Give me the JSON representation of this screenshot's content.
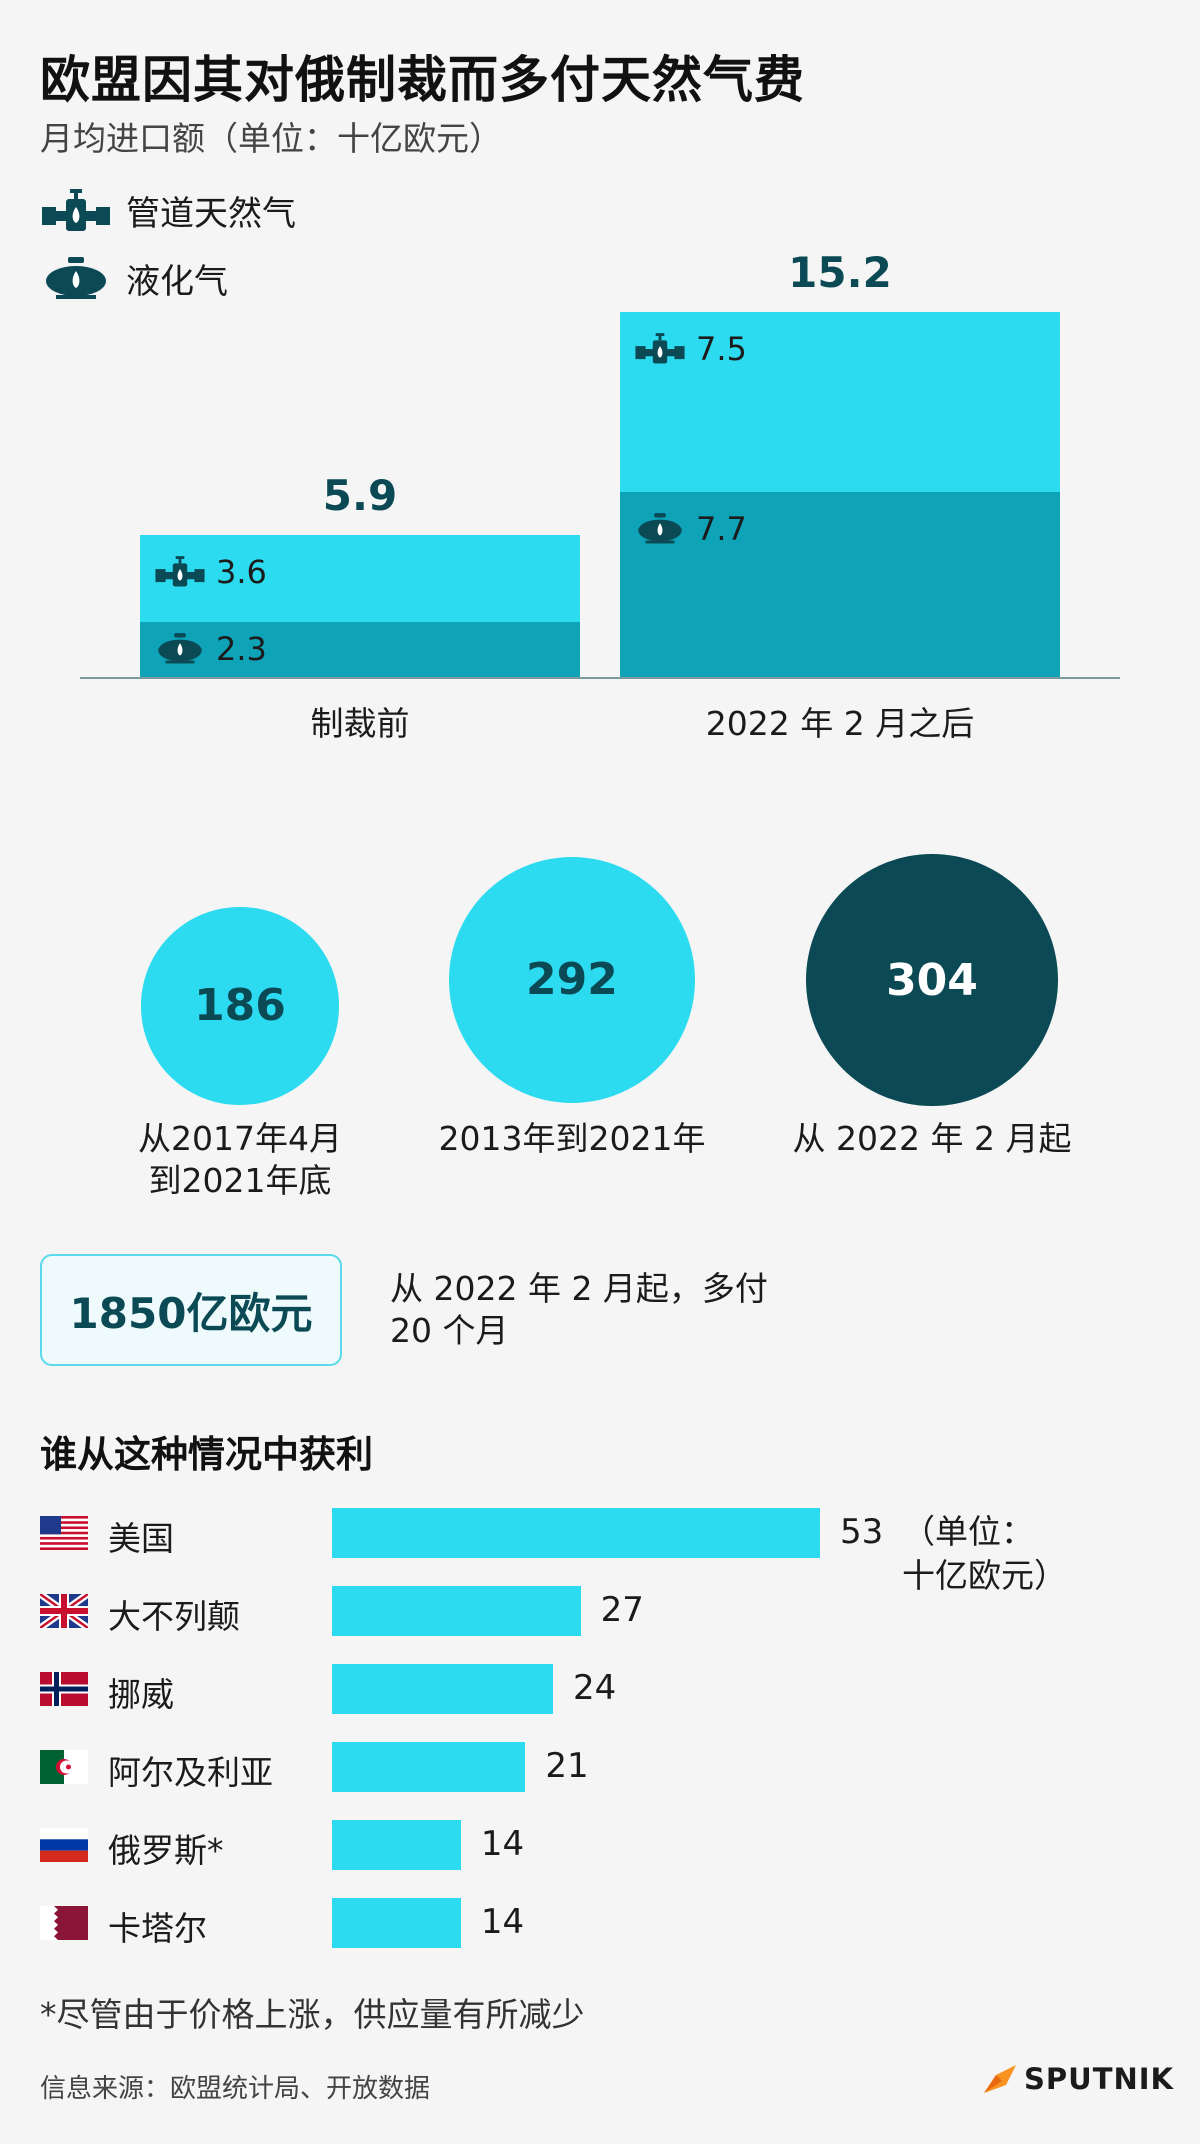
{
  "header": {
    "title": "欧盟因其对俄制裁而多付天然气费",
    "subtitle": "月均进口额（单位：十亿欧元）"
  },
  "legend": {
    "pipeline_label": "管道天然气",
    "lng_label": "液化气",
    "pipeline_icon": "gas-pipeline-icon",
    "lng_icon": "lng-tank-icon"
  },
  "colors": {
    "pipeline": "#2cdbf0",
    "lng": "#0fa3b8",
    "dark": "#0b4a55",
    "accent": "#2cdbf0"
  },
  "chart_data": [
    {
      "type": "bar",
      "stacked": true,
      "categories": [
        "制裁前",
        "2022 年 2 月之后"
      ],
      "series": [
        {
          "name": "液化气",
          "values": [
            2.3,
            7.7
          ]
        },
        {
          "name": "管道天然气",
          "values": [
            3.6,
            7.5
          ]
        }
      ],
      "totals": [
        5.9,
        15.2
      ],
      "total_labels": [
        "5.9",
        "15.2"
      ],
      "segment_labels": {
        "lng": [
          "2.3",
          "7.7"
        ],
        "pipeline": [
          "3.6",
          "7.5"
        ]
      },
      "ylim": [
        0,
        15.2
      ]
    },
    {
      "type": "bubble",
      "items": [
        {
          "label": "186",
          "value": 186,
          "caption_lines": [
            "从2017年4月",
            "到2021年底"
          ],
          "dark": false
        },
        {
          "label": "292",
          "value": 292,
          "caption_lines": [
            "2013年到2021年"
          ],
          "dark": false
        },
        {
          "label": "304",
          "value": 304,
          "caption_lines": [
            "从 2022 年 2 月起"
          ],
          "dark": true
        }
      ]
    },
    {
      "type": "bar",
      "orientation": "horizontal",
      "title": "谁从这种情况中获利",
      "unit_lines": [
        "（单位：",
        "十亿欧元）"
      ],
      "categories": [
        "美国",
        "大不列颠",
        "挪威",
        "阿尔及利亚",
        "俄罗斯*",
        "卡塔尔"
      ],
      "values": [
        53,
        27,
        24,
        21,
        14,
        14
      ],
      "value_labels": [
        "53",
        "27",
        "24",
        "21",
        "14",
        "14"
      ],
      "flags": [
        "us-flag-icon",
        "uk-flag-icon",
        "norway-flag-icon",
        "algeria-flag-icon",
        "russia-flag-icon",
        "qatar-flag-icon"
      ],
      "xlim": [
        0,
        53
      ]
    }
  ],
  "summary": {
    "total": "1850亿欧元",
    "desc_lines": [
      "从 2022 年 2 月起，多付",
      "20 个月"
    ]
  },
  "footer": {
    "footnote": "*尽管由于价格上涨，供应量有所减少",
    "source": "信息来源：欧盟统计局、开放数据",
    "logo": "SPUTNIK"
  }
}
